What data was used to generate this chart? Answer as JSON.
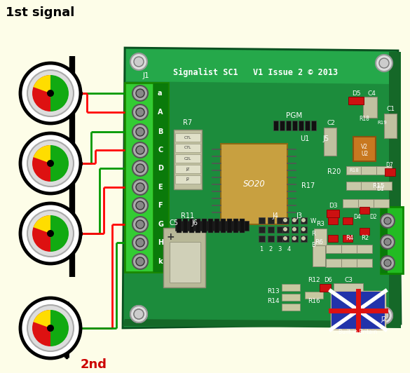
{
  "bg_color": "#fdfde8",
  "title_1st": "1st signal",
  "title_2nd": "2nd",
  "board_green": "#1a8c3c",
  "board_dark": "#0d6020",
  "board_mid": "#1f9940",
  "connector_labels": [
    "a",
    "A",
    "B",
    "C",
    "D",
    "E",
    "F",
    "G",
    "H",
    "k"
  ],
  "red_wire": "#ff0000",
  "green_wire": "#009900",
  "black_wire": "#000000",
  "header_text": "Signalist SC1   V1 Issue 2 © 2013",
  "white": "#ffffff",
  "ic_color": "#c8a040",
  "screw_gray": "#aaaaaa",
  "screw_dark": "#666666"
}
